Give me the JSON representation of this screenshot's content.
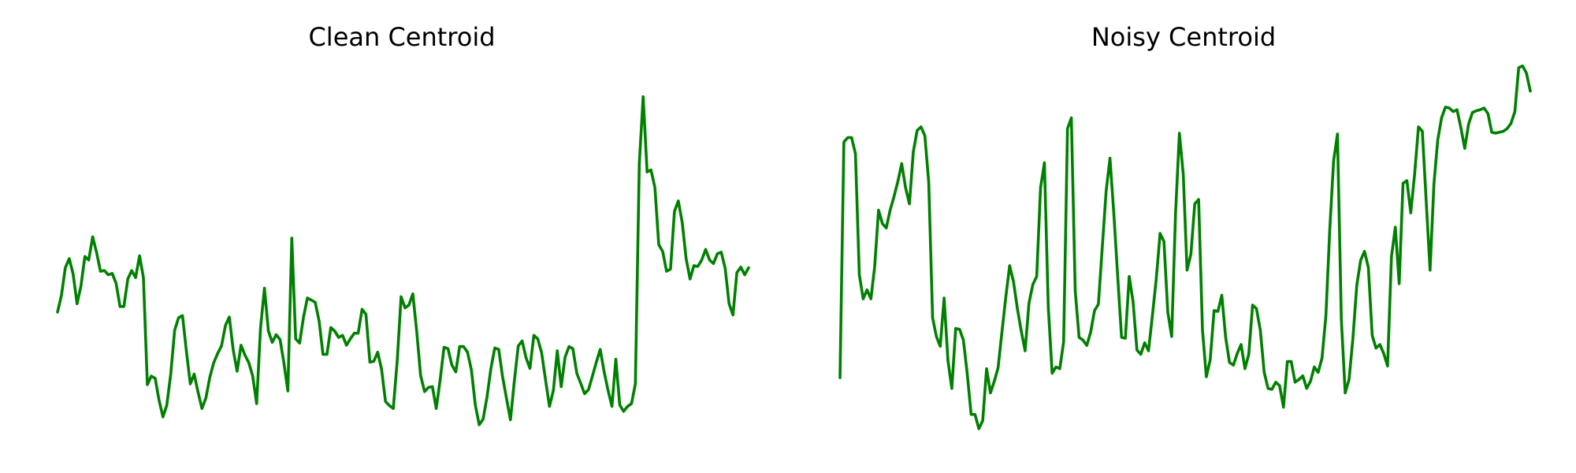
{
  "chart_data": [
    {
      "type": "line",
      "title": "Clean Centroid",
      "xlabel": "",
      "ylabel": "",
      "axes_visible": false,
      "grid": false,
      "color": "#008000",
      "ylim": [
        -2.4,
        3.2
      ],
      "series": [
        {
          "values": [
            -0.45,
            -0.21,
            0.18,
            0.31,
            0.09,
            -0.33,
            -0.08,
            0.34,
            0.29,
            0.62,
            0.4,
            0.13,
            0.14,
            0.08,
            0.1,
            -0.04,
            -0.37,
            -0.37,
            0.02,
            0.14,
            0.04,
            0.35,
            0.04,
            -1.48,
            -1.36,
            -1.39,
            -1.7,
            -1.94,
            -1.77,
            -1.33,
            -0.71,
            -0.53,
            -0.5,
            -1.0,
            -1.47,
            -1.33,
            -1.59,
            -1.82,
            -1.67,
            -1.38,
            -1.17,
            -1.04,
            -0.93,
            -0.64,
            -0.52,
            -0.99,
            -1.29,
            -0.92,
            -1.06,
            -1.17,
            -1.36,
            -1.75,
            -0.68,
            -0.11,
            -0.72,
            -0.88,
            -0.77,
            -0.84,
            -1.18,
            -1.57,
            0.6,
            -0.83,
            -0.89,
            -0.52,
            -0.25,
            -0.28,
            -0.31,
            -0.58,
            -1.05,
            -1.05,
            -0.67,
            -0.72,
            -0.81,
            -0.78,
            -0.92,
            -0.83,
            -0.75,
            -0.75,
            -0.41,
            -0.48,
            -1.16,
            -1.15,
            -1.02,
            -1.26,
            -1.72,
            -1.78,
            -1.82,
            -1.14,
            -0.23,
            -0.39,
            -0.35,
            -0.19,
            -0.72,
            -1.35,
            -1.58,
            -1.52,
            -1.51,
            -1.82,
            -1.41,
            -0.95,
            -0.97,
            -1.2,
            -1.3,
            -0.94,
            -0.94,
            -1.02,
            -1.27,
            -1.77,
            -2.05,
            -1.97,
            -1.66,
            -1.25,
            -0.96,
            -0.98,
            -1.37,
            -1.68,
            -1.98,
            -1.43,
            -0.93,
            -0.86,
            -1.1,
            -1.25,
            -0.78,
            -0.83,
            -1.03,
            -1.42,
            -1.79,
            -1.56,
            -1.0,
            -1.51,
            -1.09,
            -0.94,
            -0.97,
            -1.32,
            -1.46,
            -1.61,
            -1.55,
            -1.36,
            -1.16,
            -0.98,
            -1.3,
            -1.56,
            -1.79,
            -1.12,
            -1.77,
            -1.86,
            -1.79,
            -1.75,
            -1.47,
            1.66,
            2.61,
            1.54,
            1.57,
            1.32,
            0.51,
            0.41,
            0.13,
            0.16,
            0.98,
            1.13,
            0.82,
            0.31,
            0.02,
            0.21,
            0.2,
            0.29,
            0.44,
            0.29,
            0.24,
            0.38,
            0.4,
            0.17,
            -0.33,
            -0.49,
            0.11,
            0.19,
            0.08,
            0.18
          ],
          "count": 185
        }
      ]
    },
    {
      "type": "line",
      "title": "Noisy Centroid",
      "xlabel": "",
      "ylabel": "",
      "axes_visible": false,
      "grid": false,
      "color": "#008000",
      "ylim": [
        -1.2,
        3.2
      ],
      "series": [
        {
          "values": [
            -0.4,
            2.23,
            2.28,
            2.28,
            2.1,
            0.75,
            0.48,
            0.58,
            0.48,
            0.84,
            1.47,
            1.32,
            1.27,
            1.47,
            1.62,
            1.79,
            1.99,
            1.72,
            1.54,
            2.12,
            2.36,
            2.4,
            2.3,
            1.78,
            0.27,
            0.06,
            -0.05,
            0.49,
            -0.21,
            -0.52,
            0.15,
            0.14,
            0.02,
            -0.36,
            -0.81,
            -0.81,
            -0.97,
            -0.88,
            -0.3,
            -0.57,
            -0.44,
            -0.29,
            0.11,
            0.5,
            0.85,
            0.67,
            0.37,
            0.12,
            -0.1,
            0.43,
            0.64,
            0.73,
            1.72,
            2.0,
            0.39,
            -0.35,
            -0.28,
            -0.3,
            0.0,
            2.38,
            2.5,
            0.57,
            0.05,
            0.02,
            -0.04,
            0.11,
            0.35,
            0.42,
            1.05,
            1.68,
            2.05,
            1.43,
            0.73,
            0.05,
            0.04,
            0.73,
            0.45,
            -0.09,
            -0.14,
            -0.01,
            -0.1,
            0.29,
            0.7,
            1.21,
            1.12,
            0.33,
            0.06,
            1.43,
            2.33,
            1.87,
            0.8,
            0.98,
            1.54,
            1.59,
            0.13,
            -0.39,
            -0.2,
            0.35,
            0.34,
            0.52,
            0.05,
            -0.23,
            -0.26,
            -0.13,
            -0.03,
            -0.3,
            -0.14,
            0.41,
            0.37,
            0.13,
            -0.34,
            -0.52,
            -0.53,
            -0.45,
            -0.49,
            -0.73,
            -0.22,
            -0.22,
            -0.45,
            -0.42,
            -0.38,
            -0.52,
            -0.44,
            -0.28,
            -0.34,
            -0.18,
            0.29,
            1.25,
            2.02,
            2.32,
            0.25,
            -0.57,
            -0.42,
            0.04,
            0.63,
            0.91,
            1.01,
            0.83,
            0.07,
            -0.07,
            -0.03,
            -0.13,
            -0.27,
            0.95,
            1.28,
            0.65,
            1.77,
            1.8,
            1.44,
            1.87,
            2.4,
            2.35,
            1.57,
            0.8,
            1.76,
            2.25,
            2.5,
            2.62,
            2.61,
            2.57,
            2.59,
            2.39,
            2.16,
            2.43,
            2.56,
            2.58,
            2.59,
            2.61,
            2.55,
            2.34,
            2.33,
            2.34,
            2.35,
            2.38,
            2.44,
            2.57,
            3.06,
            3.08,
            3.0,
            2.8
          ],
          "count": 185
        }
      ]
    }
  ]
}
